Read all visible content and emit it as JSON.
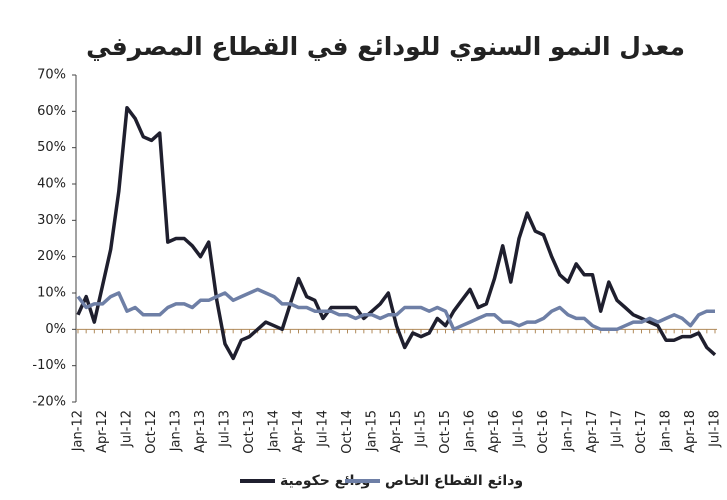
{
  "chart_data": {
    "type": "line",
    "title": "معدل النمو السنوي للودائع في القطاع المصرفي",
    "categories": [
      "Jan-12",
      null,
      null,
      "Apr-12",
      null,
      null,
      "Jul-12",
      null,
      null,
      "Oct-12",
      null,
      null,
      "Jan-13",
      null,
      null,
      "Apr-13",
      null,
      null,
      "Jul-13",
      null,
      null,
      "Oct-13",
      null,
      null,
      "Jan-14",
      null,
      null,
      "Apr-14",
      null,
      null,
      "Jul-14",
      null,
      null,
      "Oct-14",
      null,
      null,
      "Jan-15",
      null,
      null,
      "Apr-15",
      null,
      null,
      "Jul-15",
      null,
      null,
      "Oct-15",
      null,
      null,
      "Jan-16",
      null,
      null,
      "Apr-16",
      null,
      null,
      "Jul-16",
      null,
      null,
      "Oct-16",
      null,
      null,
      "Jan-17",
      null,
      null,
      "Apr-17",
      null,
      null,
      "Jul-17",
      null,
      null,
      "Oct-17",
      null,
      null,
      "Jan-18",
      null,
      null,
      "Apr-18",
      null,
      null,
      "Jul-18"
    ],
    "series": [
      {
        "name": "ودائع حكومية",
        "color": "#1f1f2e",
        "values": [
          4,
          9,
          2,
          12,
          22,
          38,
          61,
          58,
          53,
          52,
          54,
          24,
          25,
          25,
          23,
          20,
          24,
          8,
          -4,
          -8,
          -3,
          -2,
          0,
          2,
          1,
          0,
          7,
          14,
          9,
          8,
          3,
          6,
          6,
          6,
          6,
          3,
          5,
          7,
          10,
          1,
          -5,
          -1,
          -2,
          -1,
          3,
          1,
          5,
          8,
          11,
          6,
          7,
          14,
          23,
          13,
          25,
          32,
          27,
          26,
          20,
          15,
          13,
          18,
          15,
          15,
          5,
          13,
          8,
          6,
          4,
          3,
          2,
          1,
          -3,
          -3,
          -2,
          -2,
          -1,
          -5,
          -7
        ]
      },
      {
        "name": "ودائع القطاع الخاص",
        "color": "#6e7fa6",
        "values": [
          9,
          6,
          7,
          7,
          9,
          10,
          5,
          6,
          4,
          4,
          4,
          6,
          7,
          7,
          6,
          8,
          8,
          9,
          10,
          8,
          9,
          10,
          11,
          10,
          9,
          7,
          7,
          6,
          6,
          5,
          5,
          5,
          4,
          4,
          3,
          4,
          4,
          3,
          4,
          4,
          6,
          6,
          6,
          5,
          6,
          5,
          0,
          1,
          2,
          3,
          4,
          4,
          2,
          2,
          1,
          2,
          2,
          3,
          5,
          6,
          4,
          3,
          3,
          1,
          0,
          0,
          0,
          1,
          2,
          2,
          3,
          2,
          3,
          4,
          3,
          1,
          4,
          5,
          5
        ]
      }
    ],
    "ylim": [
      -20,
      70
    ],
    "yticks": [
      {
        "value": -20,
        "label": "-20%"
      },
      {
        "value": -10,
        "label": "-10%"
      },
      {
        "value": 0,
        "label": "0%"
      },
      {
        "value": 10,
        "label": "10%"
      },
      {
        "value": 20,
        "label": "20%"
      },
      {
        "value": 30,
        "label": "30%"
      },
      {
        "value": 40,
        "label": "40%"
      },
      {
        "value": 50,
        "label": "50%"
      },
      {
        "value": 60,
        "label": "60%"
      },
      {
        "value": 70,
        "label": "70%"
      }
    ],
    "legend": "bottom"
  }
}
